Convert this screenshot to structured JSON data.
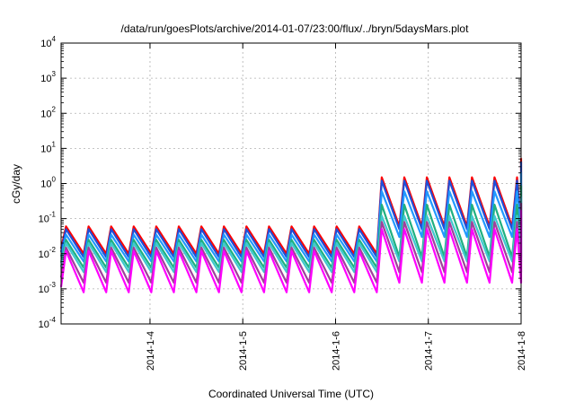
{
  "chart_data": {
    "type": "line",
    "title": "/data/run/goesPlots/archive/2014-01-07/23:00/flux/../bryn/5daysMars.plot",
    "xlabel": "Coordinated Universal Time (UTC)",
    "ylabel": "cGy/day",
    "y_scale": "log",
    "ylim": [
      0.0001,
      10000
    ],
    "y_ticks": [
      {
        "value": 0.0001,
        "base": "10",
        "exp": "-4"
      },
      {
        "value": 0.001,
        "base": "10",
        "exp": "-3"
      },
      {
        "value": 0.01,
        "base": "10",
        "exp": "-2"
      },
      {
        "value": 0.1,
        "base": "10",
        "exp": "-1"
      },
      {
        "value": 1,
        "base": "10",
        "exp": "0"
      },
      {
        "value": 10,
        "base": "10",
        "exp": "1"
      },
      {
        "value": 100,
        "base": "10",
        "exp": "2"
      },
      {
        "value": 1000,
        "base": "10",
        "exp": "3"
      },
      {
        "value": 10000,
        "base": "10",
        "exp": "4"
      }
    ],
    "xlim": [
      "2014-01-03T01:00",
      "2014-01-08T00:00"
    ],
    "x_ticks": [
      "2014-1-4",
      "2014-1-5",
      "2014-1-6",
      "2014-1-7",
      "2014-1-8"
    ],
    "grid": true,
    "series": [
      {
        "color": "#ff0000",
        "peak_before": 0.06,
        "trough_before": 0.01,
        "peak_after": 1.5,
        "trough_after": 0.06
      },
      {
        "color": "#1f4fd8",
        "peak_before": 0.05,
        "trough_before": 0.008,
        "peak_after": 1.2,
        "trough_after": 0.05
      },
      {
        "color": "#2299ff",
        "peak_before": 0.035,
        "trough_before": 0.006,
        "peak_after": 0.6,
        "trough_after": 0.03
      },
      {
        "color": "#20b080",
        "peak_before": 0.025,
        "trough_before": 0.004,
        "peak_after": 0.25,
        "trough_after": 0.008
      },
      {
        "color": "#40c8d0",
        "peak_before": 0.02,
        "trough_before": 0.003,
        "peak_after": 0.12,
        "trough_after": 0.006
      },
      {
        "color": "#a0409a",
        "peak_before": 0.015,
        "trough_before": 0.0015,
        "peak_after": 0.08,
        "trough_after": 0.003
      },
      {
        "color": "#ff00ff",
        "peak_before": 0.012,
        "trough_before": 0.0008,
        "peak_after": 0.05,
        "trough_after": 0.0015
      }
    ]
  }
}
